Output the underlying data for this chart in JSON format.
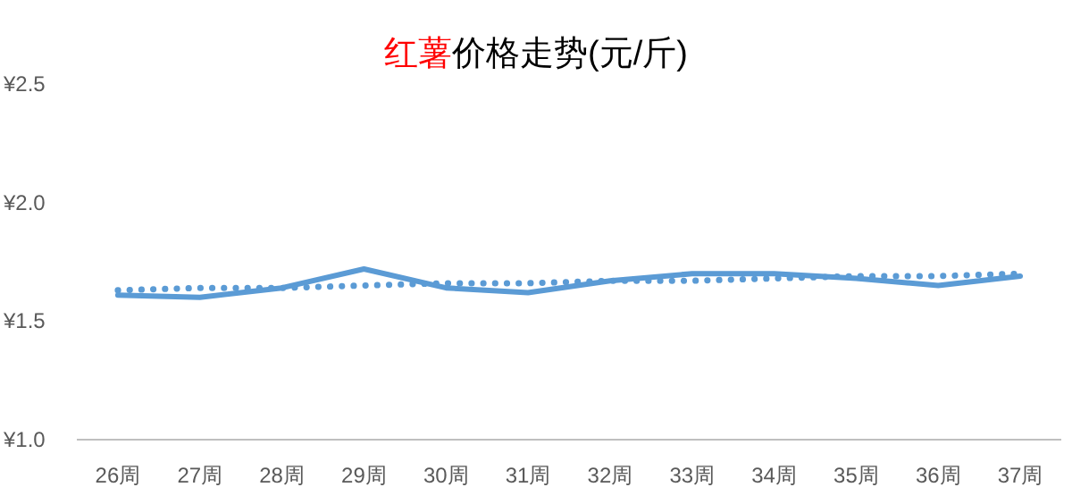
{
  "chart_data": {
    "type": "line",
    "title": "红薯价格走势(元/斤)",
    "categories": [
      "26周",
      "27周",
      "28周",
      "29周",
      "30周",
      "31周",
      "32周",
      "33周",
      "34周",
      "35周",
      "36周",
      "37周"
    ],
    "series": [
      {
        "color": "#5b9bd5",
        "line_style": "solid",
        "values": [
          1.61,
          1.6,
          1.64,
          1.72,
          1.64,
          1.62,
          1.67,
          1.7,
          1.7,
          1.68,
          1.65,
          1.69
        ]
      },
      {
        "color": "#5b9bd5",
        "line_style": "dotted",
        "values": [
          1.63,
          1.64,
          1.64,
          1.65,
          1.66,
          1.66,
          1.67,
          1.67,
          1.68,
          1.69,
          1.69,
          1.7
        ]
      }
    ],
    "ylim": [
      1.0,
      2.5
    ],
    "yticks": [
      {
        "value": 1.0,
        "label": "¥1.0"
      },
      {
        "value": 1.5,
        "label": "¥1.5"
      },
      {
        "value": 2.0,
        "label": "¥2.0"
      },
      {
        "value": 2.5,
        "label": "¥2.5"
      }
    ],
    "grid": false,
    "marker": "none"
  }
}
